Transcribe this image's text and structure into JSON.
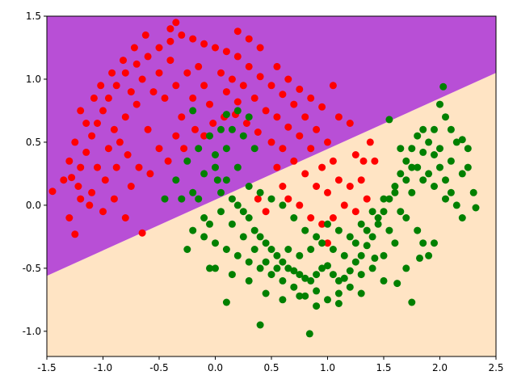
{
  "chart_data": {
    "type": "scatter",
    "title": "",
    "xlabel": "",
    "ylabel": "",
    "xlim": [
      -1.5,
      2.5
    ],
    "ylim": [
      -1.2,
      1.5
    ],
    "grid": false,
    "legend": "none",
    "x_ticks": [
      "-1.5",
      "-1.0",
      "-0.5",
      "0.0",
      "0.5",
      "1.0",
      "1.5",
      "2.0",
      "2.5"
    ],
    "y_ticks": [
      "-1.0",
      "-0.5",
      "0.0",
      "0.5",
      "1.0",
      "1.5"
    ],
    "decision_boundary": {
      "line": [
        [
          -1.5,
          -0.56
        ],
        [
          2.5,
          1.05
        ]
      ],
      "upper_region_color": "#b84fd6",
      "lower_region_color": "#ffe4c4"
    },
    "series": [
      {
        "color": "#ff0000",
        "points": [
          [
            -1.35,
            0.2
          ],
          [
            -1.28,
            0.22
          ],
          [
            -1.2,
            0.3
          ],
          [
            -1.15,
            0.42
          ],
          [
            -1.1,
            0.55
          ],
          [
            -1.05,
            0.65
          ],
          [
            -1.0,
            0.75
          ],
          [
            -0.95,
            0.85
          ],
          [
            -0.88,
            0.95
          ],
          [
            -0.8,
            1.05
          ],
          [
            -0.7,
            1.12
          ],
          [
            -0.6,
            1.18
          ],
          [
            -0.5,
            1.25
          ],
          [
            -0.4,
            1.3
          ],
          [
            -0.3,
            1.35
          ],
          [
            -0.2,
            1.32
          ],
          [
            -0.1,
            1.28
          ],
          [
            0.0,
            1.25
          ],
          [
            0.1,
            1.22
          ],
          [
            0.2,
            1.18
          ],
          [
            0.3,
            1.1
          ],
          [
            0.4,
            1.02
          ],
          [
            0.5,
            0.95
          ],
          [
            0.6,
            0.88
          ],
          [
            0.7,
            0.8
          ],
          [
            0.8,
            0.7
          ],
          [
            0.9,
            0.6
          ],
          [
            1.0,
            0.5
          ],
          [
            -1.45,
            0.11
          ],
          [
            -1.3,
            -0.1
          ],
          [
            -1.25,
            -0.23
          ],
          [
            -1.2,
            0.05
          ],
          [
            -1.1,
            0.1
          ],
          [
            -1.05,
            0.3
          ],
          [
            -0.95,
            0.45
          ],
          [
            -0.9,
            0.6
          ],
          [
            -0.85,
            0.5
          ],
          [
            -0.8,
            0.7
          ],
          [
            -0.75,
            0.9
          ],
          [
            -0.7,
            0.8
          ],
          [
            -0.65,
            1.0
          ],
          [
            -0.6,
            0.6
          ],
          [
            -0.55,
            0.9
          ],
          [
            -0.5,
            1.05
          ],
          [
            -0.45,
            0.85
          ],
          [
            -0.4,
            1.15
          ],
          [
            -0.35,
            0.95
          ],
          [
            -0.3,
            0.7
          ],
          [
            -0.25,
            1.05
          ],
          [
            -0.2,
            0.85
          ],
          [
            -0.15,
            1.1
          ],
          [
            -0.1,
            0.95
          ],
          [
            -0.05,
            0.8
          ],
          [
            0.05,
            1.05
          ],
          [
            0.1,
            0.9
          ],
          [
            0.15,
            1.0
          ],
          [
            0.2,
            0.82
          ],
          [
            0.25,
            0.95
          ],
          [
            0.35,
            0.85
          ],
          [
            0.45,
            0.75
          ],
          [
            0.55,
            0.7
          ],
          [
            0.6,
            0.45
          ],
          [
            0.65,
            0.62
          ],
          [
            0.7,
            0.35
          ],
          [
            0.75,
            0.55
          ],
          [
            0.8,
            0.25
          ],
          [
            0.85,
            0.45
          ],
          [
            0.9,
            0.15
          ],
          [
            0.95,
            0.3
          ],
          [
            1.0,
            0.1
          ],
          [
            1.05,
            0.35
          ],
          [
            1.1,
            0.2
          ],
          [
            1.15,
            0.0
          ],
          [
            1.2,
            0.15
          ],
          [
            1.25,
            -0.05
          ],
          [
            1.3,
            0.2
          ],
          [
            1.35,
            0.05
          ],
          [
            1.42,
            0.35
          ],
          [
            1.38,
            0.5
          ],
          [
            0.55,
            0.3
          ],
          [
            0.6,
            0.15
          ],
          [
            0.65,
            0.05
          ],
          [
            0.75,
            0.0
          ],
          [
            0.85,
            -0.1
          ],
          [
            0.95,
            -0.15
          ],
          [
            1.0,
            -0.3
          ],
          [
            1.05,
            -0.1
          ],
          [
            0.45,
            -0.05
          ],
          [
            0.38,
            0.05
          ],
          [
            0.5,
            0.5
          ],
          [
            -1.12,
            0.0
          ],
          [
            -1.0,
            -0.05
          ],
          [
            -0.9,
            0.05
          ],
          [
            -0.8,
            -0.1
          ],
          [
            -0.75,
            0.15
          ],
          [
            -0.68,
            0.3
          ],
          [
            -0.58,
            0.25
          ],
          [
            -0.5,
            0.45
          ],
          [
            -0.42,
            0.35
          ],
          [
            -0.35,
            0.55
          ],
          [
            -0.28,
            0.45
          ],
          [
            -0.18,
            0.6
          ],
          [
            -0.1,
            0.55
          ],
          [
            -0.02,
            0.65
          ],
          [
            0.08,
            0.7
          ],
          [
            0.18,
            0.72
          ],
          [
            0.28,
            0.65
          ],
          [
            0.38,
            0.58
          ],
          [
            -0.65,
            -0.22
          ],
          [
            -1.08,
            0.85
          ],
          [
            -1.02,
            0.95
          ],
          [
            -0.92,
            1.05
          ],
          [
            -0.82,
            1.15
          ],
          [
            -0.72,
            1.25
          ],
          [
            -0.62,
            1.35
          ],
          [
            -0.35,
            1.45
          ],
          [
            -0.4,
            1.4
          ],
          [
            0.2,
            1.38
          ],
          [
            0.3,
            1.32
          ],
          [
            0.4,
            1.25
          ],
          [
            0.55,
            1.1
          ],
          [
            0.65,
            1.0
          ],
          [
            0.75,
            0.92
          ],
          [
            0.85,
            0.85
          ],
          [
            0.95,
            0.78
          ],
          [
            1.05,
            0.95
          ],
          [
            1.1,
            0.7
          ],
          [
            1.2,
            0.65
          ],
          [
            1.25,
            0.4
          ],
          [
            1.32,
            0.35
          ],
          [
            -1.2,
            0.75
          ],
          [
            -1.15,
            0.65
          ],
          [
            -1.25,
            0.5
          ],
          [
            -1.3,
            0.35
          ],
          [
            -1.22,
            0.15
          ],
          [
            -0.98,
            0.2
          ],
          [
            -0.88,
            0.3
          ],
          [
            -0.78,
            0.4
          ]
        ]
      },
      {
        "color": "#008000",
        "points": [
          [
            -0.45,
            0.05
          ],
          [
            -0.35,
            0.2
          ],
          [
            -0.25,
            0.35
          ],
          [
            -0.15,
            0.45
          ],
          [
            -0.05,
            0.55
          ],
          [
            0.05,
            0.6
          ],
          [
            -0.2,
            0.75
          ],
          [
            0.1,
            0.72
          ],
          [
            0.2,
            0.75
          ],
          [
            0.3,
            0.7
          ],
          [
            -0.1,
            0.25
          ],
          [
            0.0,
            0.3
          ],
          [
            0.05,
            0.1
          ],
          [
            0.1,
            0.2
          ],
          [
            0.15,
            0.05
          ],
          [
            0.2,
            0.0
          ],
          [
            0.25,
            -0.05
          ],
          [
            0.3,
            -0.1
          ],
          [
            0.35,
            -0.2
          ],
          [
            0.4,
            -0.25
          ],
          [
            0.45,
            -0.3
          ],
          [
            0.5,
            -0.35
          ],
          [
            0.55,
            -0.4
          ],
          [
            0.6,
            -0.45
          ],
          [
            0.65,
            -0.5
          ],
          [
            0.7,
            -0.52
          ],
          [
            0.75,
            -0.55
          ],
          [
            0.8,
            -0.58
          ],
          [
            0.85,
            -0.6
          ],
          [
            0.9,
            -0.55
          ],
          [
            0.95,
            -0.5
          ],
          [
            1.0,
            -0.48
          ],
          [
            1.05,
            -0.55
          ],
          [
            1.1,
            -0.6
          ],
          [
            1.15,
            -0.58
          ],
          [
            1.2,
            -0.52
          ],
          [
            1.25,
            -0.45
          ],
          [
            1.3,
            -0.4
          ],
          [
            1.35,
            -0.32
          ],
          [
            1.4,
            -0.25
          ],
          [
            1.45,
            -0.15
          ],
          [
            1.5,
            -0.05
          ],
          [
            1.55,
            0.05
          ],
          [
            1.6,
            0.15
          ],
          [
            1.65,
            0.25
          ],
          [
            1.7,
            0.35
          ],
          [
            1.75,
            0.45
          ],
          [
            1.8,
            0.55
          ],
          [
            1.85,
            0.6
          ],
          [
            1.9,
            0.5
          ],
          [
            1.95,
            0.4
          ],
          [
            2.0,
            0.3
          ],
          [
            2.05,
            0.2
          ],
          [
            2.1,
            0.1
          ],
          [
            2.15,
            0.0
          ],
          [
            2.2,
            -0.1
          ],
          [
            2.25,
            0.3
          ],
          [
            2.3,
            0.1
          ],
          [
            2.32,
            -0.02
          ],
          [
            2.2,
            0.52
          ],
          [
            2.1,
            0.6
          ],
          [
            2.0,
            0.8
          ],
          [
            2.03,
            0.94
          ],
          [
            1.55,
            0.68
          ],
          [
            1.8,
            -0.2
          ],
          [
            1.85,
            -0.3
          ],
          [
            1.9,
            -0.4
          ],
          [
            1.95,
            -0.3
          ],
          [
            1.7,
            -0.1
          ],
          [
            1.6,
            -0.3
          ],
          [
            1.5,
            -0.4
          ],
          [
            1.4,
            -0.5
          ],
          [
            1.3,
            -0.55
          ],
          [
            1.2,
            -0.65
          ],
          [
            1.1,
            -0.7
          ],
          [
            1.0,
            -0.75
          ],
          [
            0.9,
            -0.68
          ],
          [
            0.8,
            -0.72
          ],
          [
            0.7,
            -0.65
          ],
          [
            0.6,
            -0.6
          ],
          [
            0.5,
            -0.55
          ],
          [
            0.4,
            -0.5
          ],
          [
            0.3,
            -0.45
          ],
          [
            0.2,
            -0.4
          ],
          [
            0.1,
            -0.35
          ],
          [
            0.0,
            -0.3
          ],
          [
            -0.1,
            -0.25
          ],
          [
            -0.2,
            -0.2
          ],
          [
            -0.25,
            -0.35
          ],
          [
            -0.05,
            -0.15
          ],
          [
            0.05,
            -0.05
          ],
          [
            0.15,
            -0.15
          ],
          [
            0.25,
            -0.25
          ],
          [
            0.35,
            -0.35
          ],
          [
            0.45,
            -0.45
          ],
          [
            0.55,
            -0.5
          ],
          [
            0.65,
            -0.35
          ],
          [
            0.75,
            -0.4
          ],
          [
            0.85,
            -0.35
          ],
          [
            0.95,
            -0.3
          ],
          [
            1.05,
            -0.35
          ],
          [
            1.15,
            -0.4
          ],
          [
            1.25,
            -0.3
          ],
          [
            1.35,
            -0.2
          ],
          [
            1.45,
            -0.1
          ],
          [
            1.55,
            -0.2
          ],
          [
            1.65,
            -0.05
          ],
          [
            1.75,
            0.1
          ],
          [
            1.85,
            0.2
          ],
          [
            1.95,
            0.15
          ],
          [
            2.05,
            0.05
          ],
          [
            0.0,
            -0.5
          ],
          [
            0.15,
            -0.55
          ],
          [
            0.3,
            -0.6
          ],
          [
            0.45,
            -0.7
          ],
          [
            0.6,
            -0.75
          ],
          [
            0.75,
            -0.72
          ],
          [
            0.9,
            -0.8
          ],
          [
            1.1,
            -0.78
          ],
          [
            1.3,
            -0.7
          ],
          [
            1.5,
            -0.6
          ],
          [
            1.7,
            -0.5
          ],
          [
            1.75,
            -0.77
          ],
          [
            0.1,
            -0.77
          ],
          [
            0.4,
            -0.95
          ],
          [
            0.84,
            -1.02
          ],
          [
            -0.05,
            -0.5
          ],
          [
            -0.2,
            0.1
          ],
          [
            -0.3,
            0.05
          ],
          [
            0.0,
            0.4
          ],
          [
            0.1,
            0.45
          ],
          [
            0.2,
            0.3
          ],
          [
            0.3,
            0.15
          ],
          [
            0.4,
            0.1
          ],
          [
            0.5,
            0.05
          ],
          [
            0.6,
            0.0
          ],
          [
            0.7,
            -0.1
          ],
          [
            0.8,
            -0.2
          ],
          [
            0.9,
            -0.25
          ],
          [
            1.0,
            -0.15
          ],
          [
            1.1,
            -0.2
          ],
          [
            1.2,
            -0.25
          ],
          [
            1.3,
            -0.15
          ],
          [
            1.4,
            -0.05
          ],
          [
            1.5,
            0.05
          ],
          [
            1.6,
            0.1
          ],
          [
            1.7,
            0.2
          ],
          [
            1.8,
            0.3
          ],
          [
            1.9,
            0.25
          ],
          [
            2.0,
            0.45
          ],
          [
            2.1,
            0.35
          ],
          [
            2.2,
            0.25
          ],
          [
            2.25,
            0.45
          ],
          [
            1.85,
            0.42
          ],
          [
            1.75,
            0.3
          ],
          [
            1.65,
            0.45
          ],
          [
            1.95,
            0.6
          ],
          [
            2.05,
            0.7
          ],
          [
            2.15,
            0.5
          ],
          [
            0.25,
            0.55
          ],
          [
            0.35,
            0.45
          ],
          [
            0.15,
            0.6
          ],
          [
            -0.15,
            0.05
          ],
          [
            -0.1,
            -0.1
          ],
          [
            0.02,
            0.2
          ],
          [
            1.42,
            -0.42
          ],
          [
            1.62,
            -0.62
          ],
          [
            1.82,
            -0.42
          ]
        ]
      }
    ]
  }
}
